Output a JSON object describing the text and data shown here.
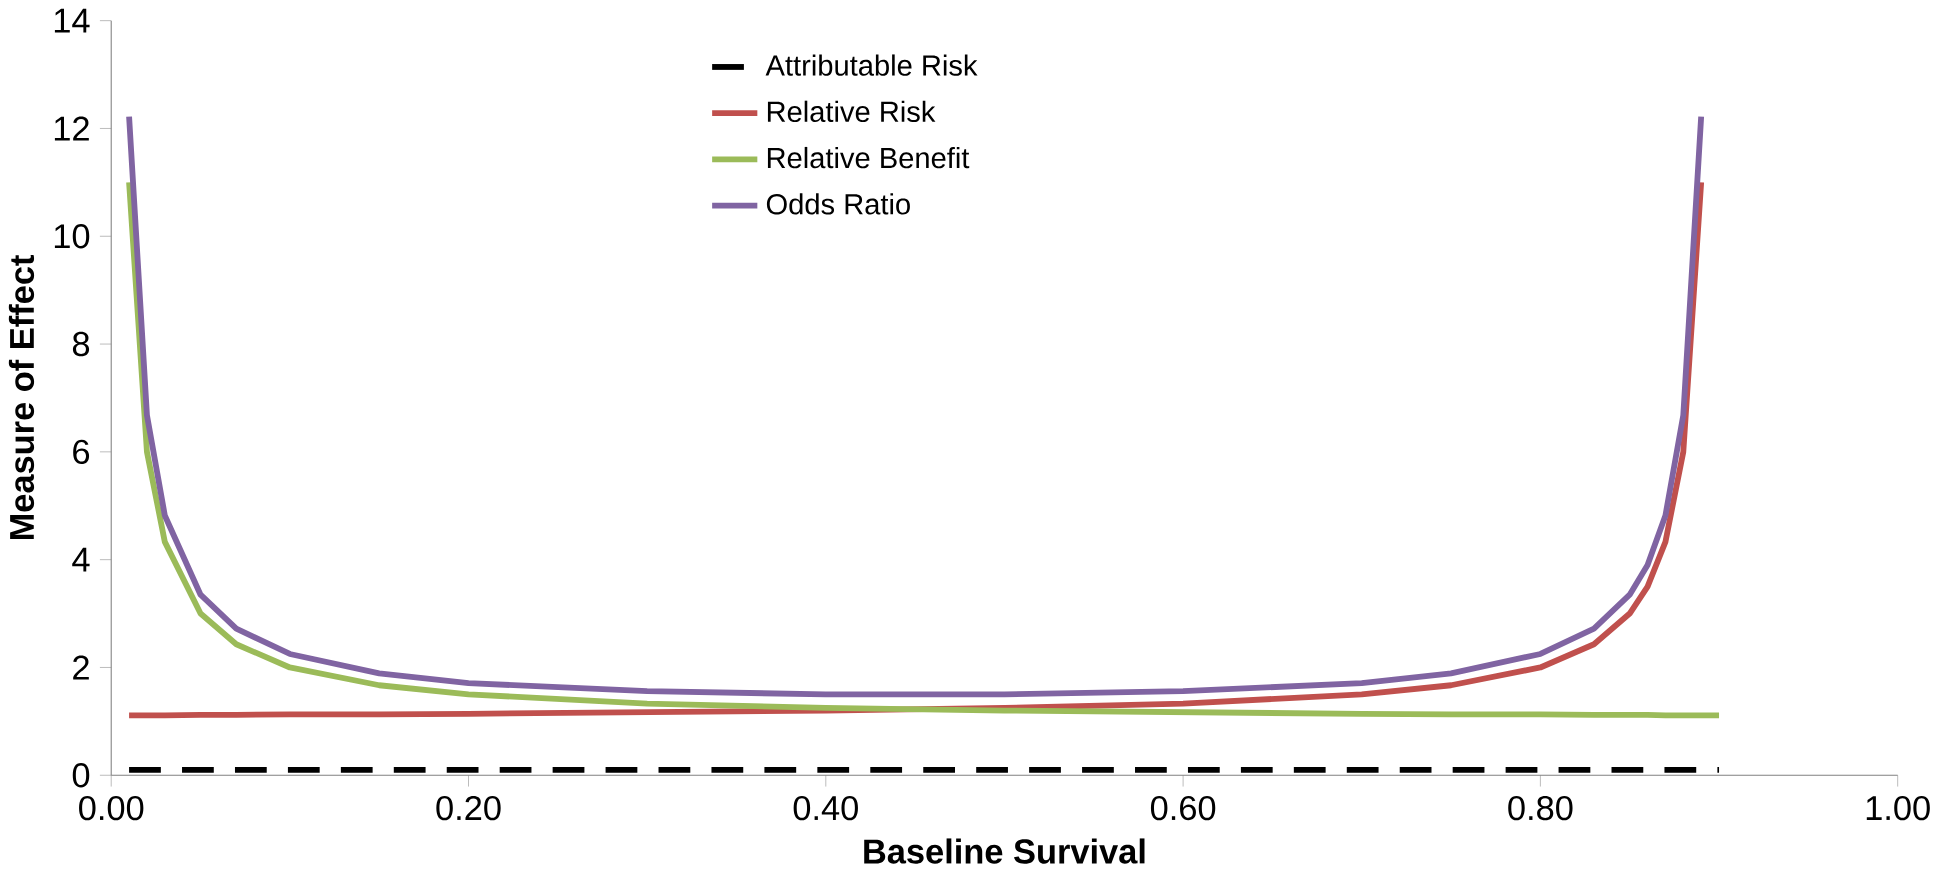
{
  "chart_data": {
    "type": "line",
    "xlabel": "Baseline Survival",
    "ylabel": "Measure of Effect",
    "xlim": [
      0,
      1
    ],
    "ylim": [
      0,
      14
    ],
    "xticks": [
      {
        "value": 0,
        "label": "0.00"
      },
      {
        "value": 0.2,
        "label": "0.20"
      },
      {
        "value": 0.4,
        "label": "0.40"
      },
      {
        "value": 0.6,
        "label": "0.60"
      },
      {
        "value": 0.8,
        "label": "0.80"
      },
      {
        "value": 1,
        "label": "1.00"
      }
    ],
    "yticks": [
      0,
      2,
      4,
      6,
      8,
      10,
      12,
      14
    ],
    "legend": "top",
    "grid": false,
    "marker": "none",
    "series": [
      {
        "name": "Attributable Risk",
        "color": "#000000",
        "line_style": "dashed",
        "x": [
          0.01,
          0.9
        ],
        "values": [
          0.1,
          0.1
        ]
      },
      {
        "name": "Relative Risk",
        "color": "#c0504d",
        "line_style": "solid",
        "x": [
          0.01,
          0.02,
          0.03,
          0.05,
          0.07,
          0.1,
          0.15,
          0.2,
          0.3,
          0.4,
          0.5,
          0.6,
          0.7,
          0.75,
          0.8,
          0.83,
          0.85,
          0.86,
          0.87,
          0.88,
          0.89
        ],
        "values": [
          1.11,
          1.11,
          1.11,
          1.12,
          1.12,
          1.13,
          1.13,
          1.14,
          1.17,
          1.2,
          1.25,
          1.33,
          1.5,
          1.67,
          2,
          2.43,
          3,
          3.5,
          4.33,
          6,
          11
        ]
      },
      {
        "name": "Relative Benefit",
        "color": "#9bbb59",
        "line_style": "solid",
        "x": [
          0.01,
          0.02,
          0.03,
          0.05,
          0.07,
          0.1,
          0.15,
          0.2,
          0.3,
          0.4,
          0.5,
          0.6,
          0.7,
          0.75,
          0.8,
          0.83,
          0.85,
          0.86,
          0.87,
          0.88,
          0.89,
          0.9
        ],
        "values": [
          11,
          6,
          4.33,
          3,
          2.43,
          2,
          1.67,
          1.5,
          1.33,
          1.25,
          1.2,
          1.17,
          1.14,
          1.13,
          1.13,
          1.12,
          1.12,
          1.12,
          1.11,
          1.11,
          1.11,
          1.11
        ]
      },
      {
        "name": "Odds Ratio",
        "color": "#8064a2",
        "line_style": "solid",
        "x": [
          0.01,
          0.02,
          0.03,
          0.05,
          0.07,
          0.1,
          0.15,
          0.2,
          0.3,
          0.4,
          0.5,
          0.6,
          0.7,
          0.75,
          0.8,
          0.83,
          0.85,
          0.86,
          0.87,
          0.88,
          0.89
        ],
        "values": [
          12.22,
          6.68,
          4.82,
          3.35,
          2.72,
          2.25,
          1.89,
          1.71,
          1.56,
          1.5,
          1.5,
          1.56,
          1.71,
          1.89,
          2.25,
          2.72,
          3.35,
          3.9,
          4.82,
          6.68,
          12.22
        ]
      }
    ]
  }
}
